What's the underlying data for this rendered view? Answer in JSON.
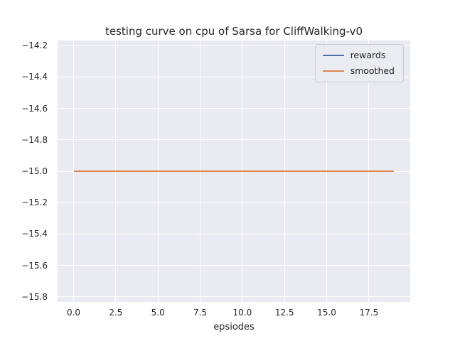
{
  "chart_data": {
    "type": "line",
    "title": "testing curve on cpu of Sarsa for CliffWalking-v0",
    "xlabel": "epsiodes",
    "ylabel": "",
    "xlim": [
      -0.95,
      19.95
    ],
    "ylim": [
      -15.832,
      -14.168
    ],
    "x_tick_values": [
      0.0,
      2.5,
      5.0,
      7.5,
      10.0,
      12.5,
      15.0,
      17.5
    ],
    "x_tick_labels": [
      "0.0",
      "2.5",
      "5.0",
      "7.5",
      "10.0",
      "12.5",
      "15.0",
      "17.5"
    ],
    "y_tick_values": [
      -14.2,
      -14.4,
      -14.6,
      -14.8,
      -15.0,
      -15.2,
      -15.4,
      -15.6,
      -15.8
    ],
    "y_tick_labels": [
      "−14.2",
      "−14.4",
      "−14.6",
      "−14.8",
      "−15.0",
      "−15.2",
      "−15.4",
      "−15.6",
      "−15.8"
    ],
    "series": [
      {
        "name": "rewards",
        "color": "#4c72b0",
        "x": [
          0,
          19
        ],
        "y_constant": -15.0
      },
      {
        "name": "smoothed",
        "color": "#dd8452",
        "x": [
          0,
          19
        ],
        "y_constant": -15.0
      }
    ],
    "legend": {
      "position": "upper right",
      "entries": [
        "rewards",
        "smoothed"
      ]
    },
    "grid": true,
    "colors": {
      "plot_background": "#eaeaf2",
      "grid_line": "#ffffff",
      "text": "#262626",
      "legend_background": "#ebebf2",
      "legend_border": "#c9c9d2"
    }
  }
}
